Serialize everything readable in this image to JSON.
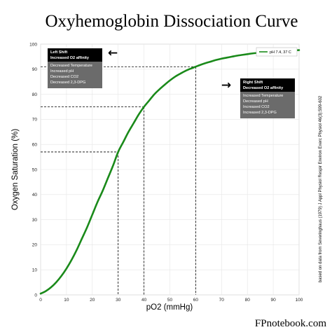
{
  "chart_data": {
    "type": "line",
    "title": "Oxyhemoglobin Dissociation Curve",
    "xlabel": "pO2 (mmHg)",
    "ylabel": "Oxygen Saturation (%)",
    "xlim": [
      0,
      100
    ],
    "ylim": [
      0,
      100
    ],
    "xticks": [
      0,
      10,
      20,
      30,
      40,
      50,
      60,
      70,
      80,
      90,
      100
    ],
    "yticks": [
      0,
      10,
      20,
      30,
      40,
      50,
      60,
      70,
      80,
      90,
      100
    ],
    "grid": true,
    "legend_position": "top-right",
    "series": [
      {
        "name": "pH 7.4, 37 C",
        "color": "#1a8a1a",
        "x": [
          0,
          2,
          4,
          6,
          8,
          10,
          12,
          14,
          16,
          18,
          20,
          22,
          24,
          26,
          28,
          30,
          32,
          34,
          36,
          38,
          40,
          42,
          44,
          46,
          48,
          50,
          52,
          54,
          56,
          58,
          60,
          62,
          64,
          66,
          68,
          70,
          72,
          74,
          76,
          78,
          80,
          82,
          84,
          86,
          88,
          90,
          92,
          94,
          96,
          98,
          100
        ],
        "y": [
          0.5,
          1.5,
          3,
          5,
          7.5,
          10.5,
          14,
          18,
          22.5,
          27,
          32,
          37,
          41.5,
          46.5,
          51.5,
          57,
          61,
          65,
          68.5,
          72,
          75,
          77.5,
          80,
          82,
          83.8,
          85.5,
          87,
          88.2,
          89.3,
          90.2,
          91,
          91.8,
          92.5,
          93.1,
          93.7,
          94.2,
          94.6,
          95,
          95.4,
          95.7,
          96,
          96.3,
          96.5,
          96.7,
          96.9,
          97.1,
          97.2,
          97.3,
          97.4,
          97.5,
          97.6
        ]
      }
    ],
    "reference_points": [
      {
        "x": 30,
        "y": 57
      },
      {
        "x": 40,
        "y": 75
      },
      {
        "x": 60,
        "y": 91
      }
    ],
    "annotations": {
      "left_shift": {
        "title_lines": [
          "Left Shift",
          "Increased O2 affinity"
        ],
        "items": [
          "Decreased Temperature",
          "Increased pH",
          "Decreased CO2",
          "Decreased 2,3-DPG"
        ],
        "arrow": "←"
      },
      "right_shift": {
        "title_lines": [
          "Right Shift",
          "Decreased O2 affinity"
        ],
        "items": [
          "Increased Temperature",
          "Decreased pH",
          "Increased CO2",
          "Increased 2,3-DPG"
        ],
        "arrow": "→"
      }
    }
  },
  "colors": {
    "curve": "#1a8a1a",
    "note_head": "#000000",
    "note_body": "#6b6b6b",
    "grid": "#e6e6e6",
    "reference_line": "#000000"
  },
  "side_note": "based on data from Severinghaus (1979) J Appl Physiol Respir Environ Exerc Physiol 46(3):599-602",
  "brand": "FPnotebook.com"
}
